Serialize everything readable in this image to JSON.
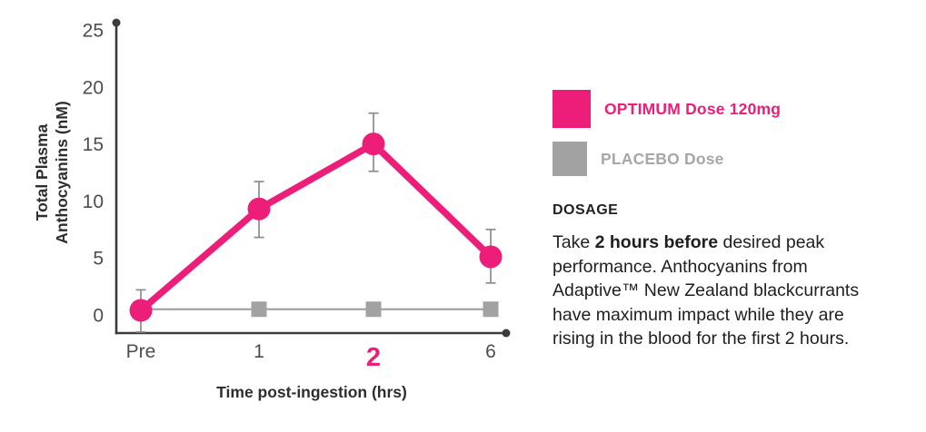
{
  "colors": {
    "optimum_pink": "#ED1E79",
    "placebo_gray": "#A2A2A2",
    "placebo_label_gray": "#A7A7A7",
    "axis": "#3B3B3B",
    "tick_text": "#4D4D4D",
    "label_text": "#2E2E2E",
    "error_bar": "#8C8C8C",
    "body_text": "#1F1F1F"
  },
  "chart_data": {
    "type": "line",
    "title": "",
    "xlabel": "Time post-ingestion (hrs)",
    "ylabel": "Total Plasma Anthocyanins (nM)",
    "ylabel_lines": [
      "Total Plasma",
      "Anthocyanins (nM)"
    ],
    "categories": [
      "Pre",
      "1",
      "2",
      "6"
    ],
    "highlighted_category": "2",
    "y_ticks": [
      25,
      20,
      15,
      10,
      5,
      0
    ],
    "ylim": [
      0,
      25
    ],
    "grid": false,
    "legend_position": "right",
    "series": [
      {
        "name": "OPTIMUM Dose 120mg",
        "color": "#ED1E79",
        "marker": "circle",
        "values": [
          0.4,
          9.3,
          15.0,
          5.1
        ],
        "error_up": [
          1.8,
          2.4,
          2.7,
          2.4
        ],
        "error_down": [
          1.9,
          2.5,
          2.4,
          2.3
        ]
      },
      {
        "name": "PLACEBO Dose",
        "color": "#A2A2A2",
        "marker": "square",
        "values": [
          0.5,
          0.5,
          0.5,
          0.5
        ]
      }
    ]
  },
  "legend": {
    "items": [
      {
        "label": "OPTIMUM Dose 120mg"
      },
      {
        "label": "PLACEBO Dose"
      }
    ]
  },
  "dosage": {
    "heading": "DOSAGE",
    "body_prefix": "Take ",
    "body_bold": "2 hours before",
    "body_suffix": " desired peak\nperformance. Anthocyanins from\nAdaptive™ New Zealand blackcurrants\nhave maximum impact while they are\nrising in the blood for the first 2 hours."
  }
}
